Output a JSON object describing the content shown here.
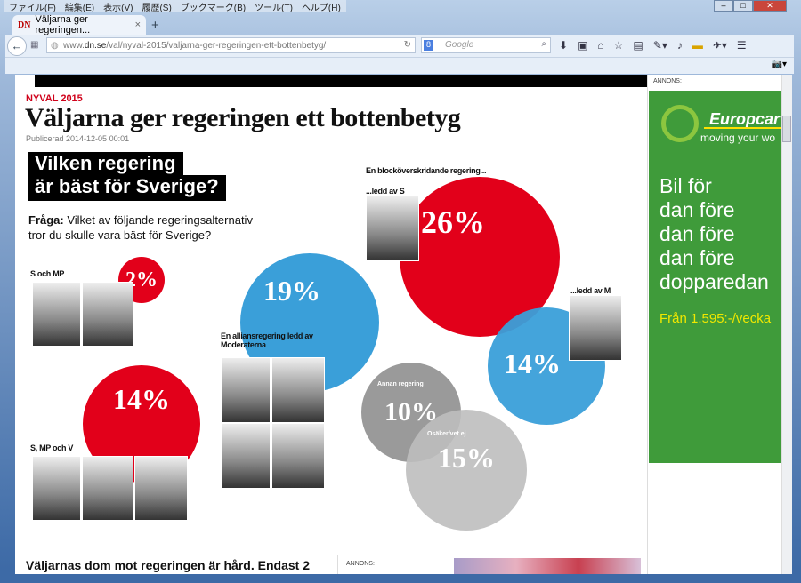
{
  "browser": {
    "menu": [
      "ファイル(F)",
      "編集(E)",
      "表示(V)",
      "履歴(S)",
      "ブックマーク(B)",
      "ツール(T)",
      "ヘルプ(H)"
    ],
    "tab_title": "Väljarna ger regeringen...",
    "tab_logo": "DN",
    "url_prefix": "www.",
    "url_domain": "dn.se",
    "url_path": "/val/nyval-2015/valjarna-ger-regeringen-ett-bottenbetyg/",
    "search_placeholder": "Google"
  },
  "article": {
    "kicker": "NYVAL 2015",
    "title": "Väljarna ger regeringen ett bottenbetyg",
    "published": "Publicerad 2014-12-05 00:01",
    "question_title_1": "Vilken regering",
    "question_title_2": "är bäst för Sverige?",
    "question_label": "Fråga:",
    "question_text": " Vilket av följande regeringsalternativ tror du skulle vara bäst för Sverige?",
    "lead": "Väljarnas dom mot regeringen är hård. Endast 2"
  },
  "bubbles": [
    {
      "label": "S och MP",
      "value": "2%",
      "color": "#e2001a"
    },
    {
      "label": "S, MP och V",
      "value": "14%",
      "color": "#e2001a"
    },
    {
      "label": "En alliansregering ledd av Moderaterna",
      "value": "19%",
      "color": "#3a9fd9"
    },
    {
      "group": "En blocköverskridande regering...",
      "label": "...ledd av S",
      "value": "26%",
      "color": "#e2001a"
    },
    {
      "label": "...ledd av M",
      "value": "14%",
      "color": "#3a9fd9"
    },
    {
      "label": "Annan regering",
      "value": "10%",
      "color": "#9a9a9a"
    },
    {
      "label": "Osäker/vet ej",
      "value": "15%",
      "color": "#c8c8c8"
    }
  ],
  "ads": {
    "annons": "ANNONS:",
    "brand": "Europcar",
    "tagline": "moving your wo",
    "lines": [
      "Bil för",
      "dan före",
      "dan före",
      "dan före",
      "dopparedan"
    ],
    "price": "Från 1.595:-/vecka"
  }
}
